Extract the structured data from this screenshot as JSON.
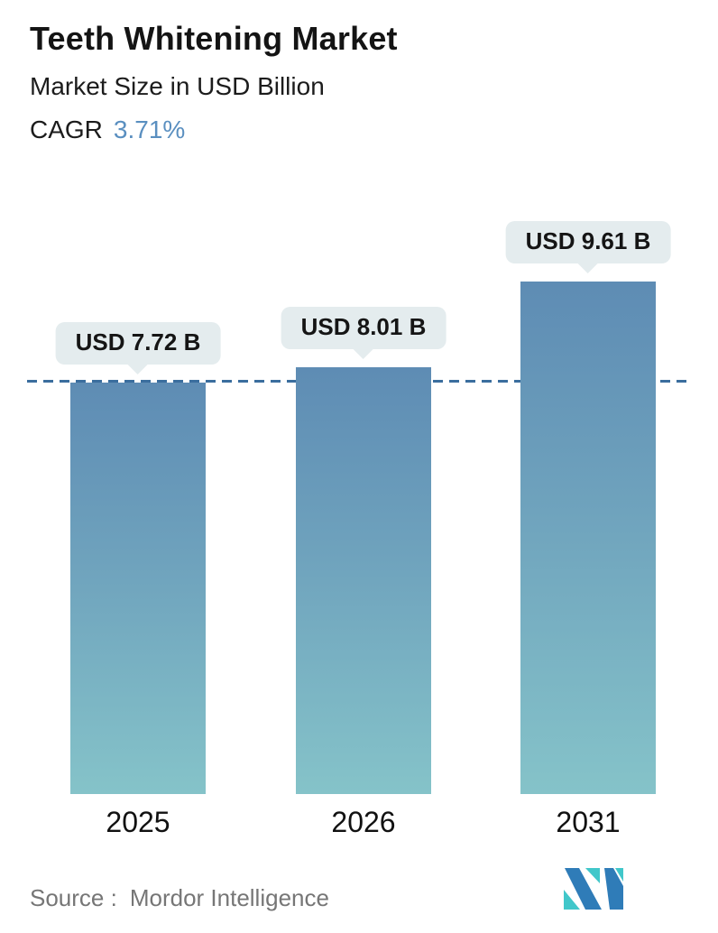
{
  "header": {
    "title": "Teeth Whitening Market",
    "subtitle": "Market Size in USD Billion",
    "cagr_label": "CAGR",
    "cagr_value": "3.71%"
  },
  "chart_data": {
    "type": "bar",
    "title": "Teeth Whitening Market",
    "subtitle": "Market Size in USD Billion",
    "cagr_percent": 3.71,
    "categories": [
      "2025",
      "2026",
      "2031"
    ],
    "values": [
      7.72,
      8.01,
      9.61
    ],
    "bar_labels": [
      "USD 7.72 B",
      "USD 8.01 B",
      "USD 9.61 B"
    ],
    "unit": "USD Billion",
    "ylim": [
      0,
      11
    ],
    "grid": false,
    "legend": "none",
    "reference_line_value": 7.72,
    "reference_line_style": "dashed"
  },
  "footer": {
    "source_label": "Source :",
    "source_name": "Mordor Intelligence",
    "logo_name": "mordor-intelligence-logo"
  },
  "colors": {
    "accent_blue": "#5a8fc0",
    "bar_top": "#5e8cb4",
    "bar_bottom": "#85c3c9",
    "dashed_line": "#3b6e9e",
    "tooltip_bg": "#e4ecee",
    "source_text": "#767676",
    "logo_blue": "#2f7cb8",
    "logo_teal": "#41c7ca"
  }
}
